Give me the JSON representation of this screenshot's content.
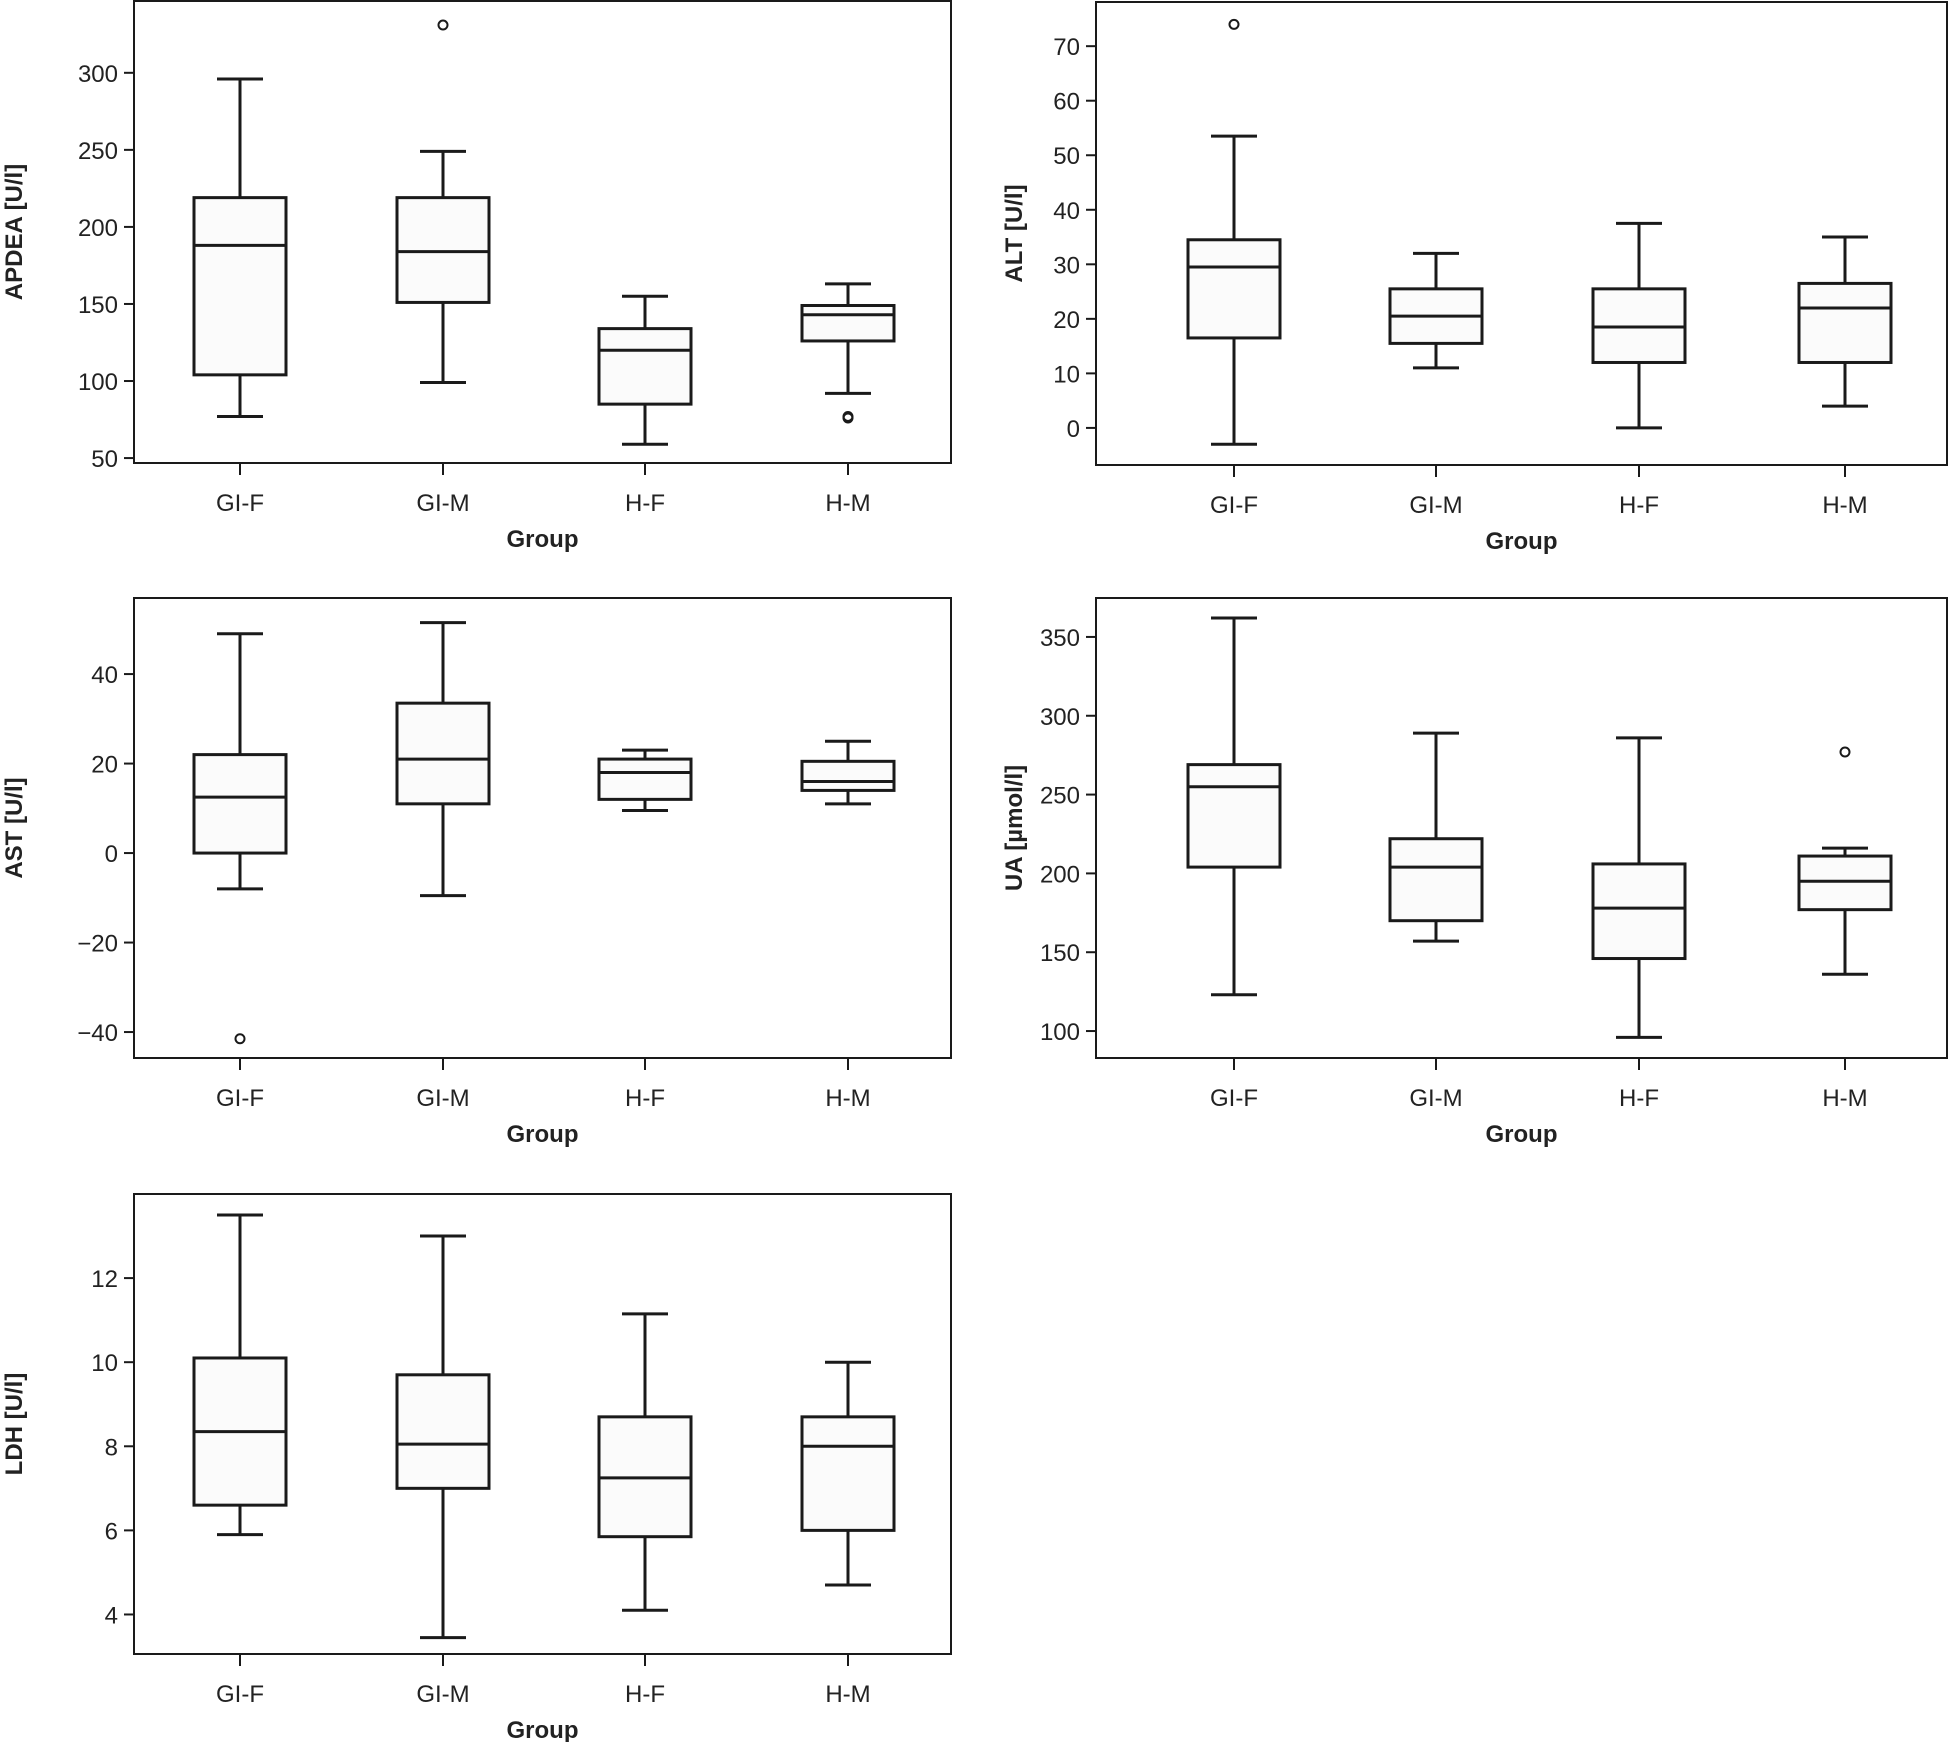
{
  "chart_data": [
    {
      "type": "box",
      "id": "apdea",
      "title": "",
      "xlabel": "Group",
      "ylabel": "APDEA [U/l]",
      "ylim": [
        46.8,
        346.6
      ],
      "yticks": [
        50,
        100,
        150,
        200,
        250,
        300
      ],
      "categories": [
        "GI-F",
        "GI-M",
        "H-F",
        "H-M"
      ],
      "boxes": [
        {
          "group": "GI-F",
          "min": 77,
          "q1": 104,
          "median": 188,
          "q3": 219,
          "max": 296,
          "outliers": []
        },
        {
          "group": "GI-M",
          "min": 99,
          "q1": 151,
          "median": 184,
          "q3": 219,
          "max": 249,
          "outliers": [
            331
          ]
        },
        {
          "group": "H-F",
          "min": 59,
          "q1": 85,
          "median": 120,
          "q3": 134,
          "max": 155,
          "outliers": []
        },
        {
          "group": "H-M",
          "min": 92,
          "q1": 126,
          "median": 143,
          "q3": 149,
          "max": 163,
          "outliers": [
            76,
            77
          ]
        }
      ]
    },
    {
      "type": "box",
      "id": "alt",
      "title": "",
      "xlabel": "Group",
      "ylabel": "ALT [U/l]",
      "ylim": [
        -6.8,
        78.1
      ],
      "yticks": [
        0,
        10,
        20,
        30,
        40,
        50,
        60,
        70
      ],
      "categories": [
        "GI-F",
        "GI-M",
        "H-F",
        "H-M"
      ],
      "boxes": [
        {
          "group": "GI-F",
          "min": -3,
          "q1": 16.5,
          "median": 29.5,
          "q3": 34.5,
          "max": 53.5,
          "outliers": [
            74
          ]
        },
        {
          "group": "GI-M",
          "min": 11,
          "q1": 15.5,
          "median": 20.5,
          "q3": 25.5,
          "max": 32,
          "outliers": []
        },
        {
          "group": "H-F",
          "min": 0,
          "q1": 12,
          "median": 18.5,
          "q3": 25.5,
          "max": 37.5,
          "outliers": []
        },
        {
          "group": "H-M",
          "min": 4,
          "q1": 12,
          "median": 22,
          "q3": 26.5,
          "max": 35,
          "outliers": []
        }
      ]
    },
    {
      "type": "box",
      "id": "ast",
      "title": "",
      "xlabel": "Group",
      "ylabel": "AST [U/l]",
      "ylim": [
        -45.8,
        57
      ],
      "yticks": [
        -40,
        -20,
        0,
        20,
        40
      ],
      "ytick_labels": [
        "−40",
        "−20",
        "0",
        "20",
        "40"
      ],
      "categories": [
        "GI-F",
        "GI-M",
        "H-F",
        "H-M"
      ],
      "boxes": [
        {
          "group": "GI-F",
          "min": -8,
          "q1": 0,
          "median": 12.5,
          "q3": 22,
          "max": 49,
          "outliers": [
            -41.5
          ]
        },
        {
          "group": "GI-M",
          "min": -9.5,
          "q1": 11,
          "median": 21,
          "q3": 33.5,
          "max": 51.5,
          "outliers": []
        },
        {
          "group": "H-F",
          "min": 9.5,
          "q1": 12,
          "median": 18,
          "q3": 21,
          "max": 23,
          "outliers": []
        },
        {
          "group": "H-M",
          "min": 11,
          "q1": 14,
          "median": 16,
          "q3": 20.5,
          "max": 25,
          "outliers": []
        }
      ]
    },
    {
      "type": "box",
      "id": "ua",
      "title": "",
      "xlabel": "Group",
      "ylabel": "UA [µmol/l]",
      "ylim": [
        82.9,
        374.7
      ],
      "yticks": [
        100,
        150,
        200,
        250,
        300,
        350
      ],
      "categories": [
        "GI-F",
        "GI-M",
        "H-F",
        "H-M"
      ],
      "boxes": [
        {
          "group": "GI-F",
          "min": 123,
          "q1": 204,
          "median": 255,
          "q3": 269,
          "max": 362,
          "outliers": []
        },
        {
          "group": "GI-M",
          "min": 157,
          "q1": 170,
          "median": 204,
          "q3": 222,
          "max": 289,
          "outliers": []
        },
        {
          "group": "H-F",
          "min": 96,
          "q1": 146,
          "median": 178,
          "q3": 206,
          "max": 286,
          "outliers": []
        },
        {
          "group": "H-M",
          "min": 136,
          "q1": 177,
          "median": 195,
          "q3": 211,
          "max": 216,
          "outliers": [
            277
          ]
        }
      ]
    },
    {
      "type": "box",
      "id": "ldh",
      "title": "",
      "xlabel": "Group",
      "ylabel": "LDH [U/l]",
      "ylim": [
        3.06,
        14
      ],
      "yticks": [
        4,
        6,
        8,
        10,
        12
      ],
      "categories": [
        "GI-F",
        "GI-M",
        "H-F",
        "H-M"
      ],
      "boxes": [
        {
          "group": "GI-F",
          "min": 5.9,
          "q1": 6.6,
          "median": 8.35,
          "q3": 10.1,
          "max": 13.5,
          "outliers": []
        },
        {
          "group": "GI-M",
          "min": 3.45,
          "q1": 7.0,
          "median": 8.05,
          "q3": 9.7,
          "max": 13.0,
          "outliers": []
        },
        {
          "group": "H-F",
          "min": 4.1,
          "q1": 5.85,
          "median": 7.25,
          "q3": 8.7,
          "max": 11.15,
          "outliers": []
        },
        {
          "group": "H-M",
          "min": 4.7,
          "q1": 6.0,
          "median": 8.0,
          "q3": 8.7,
          "max": 10.0,
          "outliers": []
        }
      ]
    }
  ]
}
